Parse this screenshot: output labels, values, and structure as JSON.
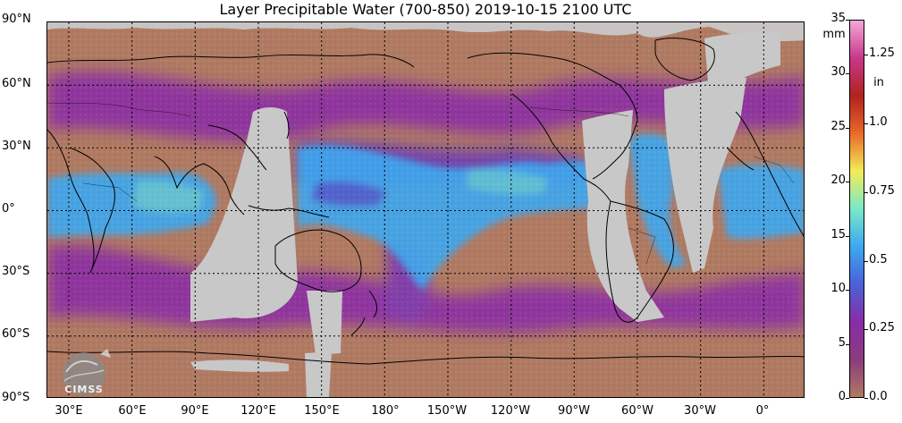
{
  "title": "Layer Precipitable Water (700-850)  2019-10-15 2100 UTC",
  "lat_labels": [
    "90°N",
    "60°N",
    "30°N",
    "0°",
    "30°S",
    "60°S",
    "90°S"
  ],
  "lon_labels": [
    "30°E",
    "60°E",
    "90°E",
    "120°E",
    "150°E",
    "180°",
    "150°W",
    "120°W",
    "90°W",
    "60°W",
    "30°W",
    "0°"
  ],
  "colorbar": {
    "left_unit": "mm",
    "right_unit": "in",
    "mm_ticks": [
      "35",
      "30",
      "25",
      "20",
      "15",
      "10",
      "5",
      "0"
    ],
    "in_ticks": [
      "1.25",
      "1.0",
      "0.75",
      "0.5",
      "0.25",
      "0.0"
    ],
    "mm_max": 35,
    "colors": [
      "#b07a62",
      "#8a3c7c",
      "#8a2ca8",
      "#4a62d8",
      "#3da8f0",
      "#7ae8c8",
      "#f2ec58",
      "#e86a2a",
      "#b0221e",
      "#c8388a",
      "#f2a8d8"
    ]
  },
  "logo": {
    "text": "CIMSS"
  },
  "colors": {
    "background": "#b07a62",
    "no_data": "#c8c8c8",
    "coast": "#000000",
    "moist": "#3da8f0",
    "mid": "#8a2ca8"
  }
}
